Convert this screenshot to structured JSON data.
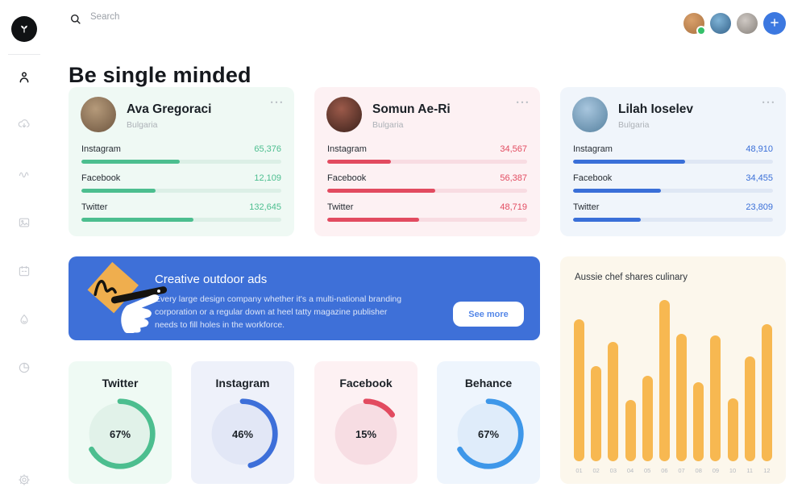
{
  "topbar": {
    "search_placeholder": "Search",
    "avatars": [
      {
        "online": true
      },
      {
        "online": false
      },
      {
        "online": false
      }
    ]
  },
  "sidebar": {
    "items": [
      {
        "id": "profile",
        "active": true
      },
      {
        "id": "cloud-download",
        "active": false
      },
      {
        "id": "activity",
        "active": false
      },
      {
        "id": "gallery",
        "active": false
      },
      {
        "id": "calendar",
        "active": false
      },
      {
        "id": "flame",
        "active": false
      },
      {
        "id": "pie-chart",
        "active": false
      },
      {
        "id": "settings",
        "active": false
      }
    ]
  },
  "page": {
    "title": "Be single minded"
  },
  "profiles": [
    {
      "name": "Ava Gregoraci",
      "country": "Bulgaria",
      "theme": "green",
      "stats": [
        {
          "label": "Instagram",
          "value": "65,376",
          "percent": 49
        },
        {
          "label": "Facebook",
          "value": "12,109",
          "percent": 37
        },
        {
          "label": "Twitter",
          "value": "132,645",
          "percent": 56
        }
      ]
    },
    {
      "name": "Somun Ae-Ri",
      "country": "Bulgaria",
      "theme": "red",
      "stats": [
        {
          "label": "Instagram",
          "value": "34,567",
          "percent": 32
        },
        {
          "label": "Facebook",
          "value": "56,387",
          "percent": 54
        },
        {
          "label": "Twitter",
          "value": "48,719",
          "percent": 46
        }
      ]
    },
    {
      "name": "Lilah Ioselev",
      "country": "Bulgaria",
      "theme": "blue",
      "stats": [
        {
          "label": "Instagram",
          "value": "48,910",
          "percent": 56
        },
        {
          "label": "Facebook",
          "value": "34,455",
          "percent": 44
        },
        {
          "label": "Twitter",
          "value": "23,809",
          "percent": 34
        }
      ]
    }
  ],
  "banner": {
    "title": "Creative outdoor ads",
    "body": "Every large design company whether it's a multi-national branding corporation or a regular down at heel tatty magazine publisher needs to fill holes in the workforce.",
    "button_label": "See more"
  },
  "gauges": [
    {
      "label": "Twitter",
      "percent": 67,
      "display": "67%",
      "theme": "green"
    },
    {
      "label": "Instagram",
      "percent": 46,
      "display": "46%",
      "theme": "royal"
    },
    {
      "label": "Facebook",
      "percent": 15,
      "display": "15%",
      "theme": "red"
    },
    {
      "label": "Behance",
      "percent": 67,
      "display": "67%",
      "theme": "sky"
    }
  ],
  "chart_data": {
    "type": "bar",
    "title": "Aussie chef shares culinary",
    "categories": [
      "01",
      "02",
      "03",
      "04",
      "05",
      "06",
      "07",
      "08",
      "09",
      "10",
      "11",
      "12"
    ],
    "values": [
      88,
      59,
      74,
      38,
      53,
      100,
      79,
      49,
      78,
      39,
      65,
      85
    ],
    "xlabel": "",
    "ylabel": "",
    "ylim": [
      0,
      100
    ],
    "grid": false,
    "legend": false,
    "bar_color": "#F7B851",
    "background": "#FCF7EC"
  },
  "colors": {
    "green": "#4CBE8F",
    "red": "#E24B60",
    "blue": "#3A6FD8",
    "royal": "#3D6FD9",
    "sky": "#3E97E9",
    "banner_blue": "#3E70D8",
    "plus_blue": "#3C78E0",
    "amber": "#F7B851",
    "online_dot": "#35C06A"
  }
}
